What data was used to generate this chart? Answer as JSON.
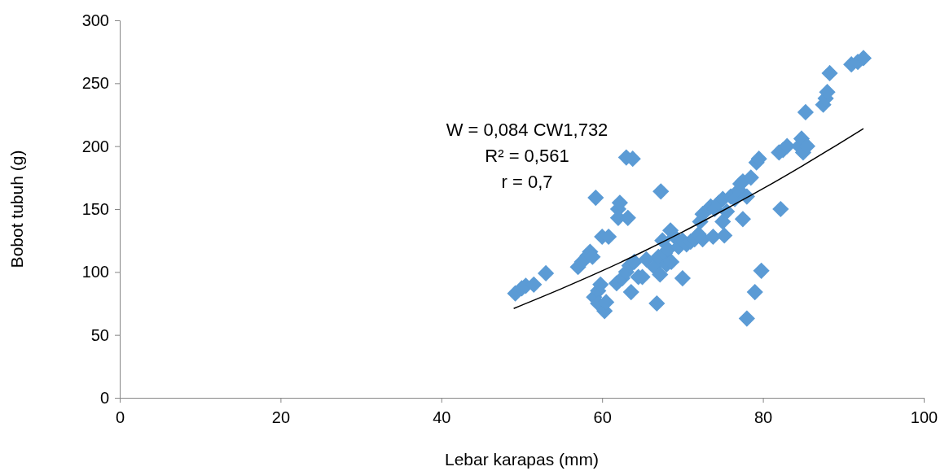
{
  "chart_data": {
    "type": "scatter",
    "xlabel": "Lebar karapas (mm)",
    "ylabel": "Bobot tubuh (g)",
    "xlim": [
      0,
      100
    ],
    "xticks": [
      0,
      20,
      40,
      60,
      80,
      100
    ],
    "ylim": [
      0,
      300
    ],
    "yticks": [
      0,
      50,
      100,
      150,
      200,
      250,
      300
    ],
    "grid": false,
    "marker": "diamond",
    "annotations": [
      "W = 0,084 CW1,732",
      "R² = 0,561",
      "r = 0,7"
    ],
    "series": [
      {
        "color": "#5b9bd5",
        "x": [
          49.2,
          50,
          50.5,
          51.5,
          53,
          57,
          57.5,
          58.2,
          58.5,
          58.8,
          59.2,
          59,
          59.5,
          59.8,
          59.5,
          60.3,
          60.5,
          60,
          60.8,
          61.8,
          62,
          62.2,
          62,
          62.5,
          63,
          63.2,
          63.4,
          63,
          63.8,
          63.6,
          64,
          64.5,
          65,
          65.5,
          66.5,
          66.8,
          67,
          67.2,
          67.3,
          67.5,
          67.8,
          68,
          68.2,
          68.5,
          68.6,
          69,
          69.5,
          70,
          70,
          70.5,
          71,
          71.5,
          72,
          72.2,
          72.5,
          72.5,
          73.5,
          73.8,
          74,
          74.5,
          75,
          75,
          75.2,
          75.5,
          76,
          76.5,
          77,
          77.2,
          77.5,
          77.5,
          78,
          78,
          78.5,
          79,
          79.2,
          79.5,
          79.8,
          82.2,
          82,
          82.5,
          83,
          84.5,
          84.8,
          85,
          85.5,
          85.3,
          87.5,
          87.8,
          88,
          88.3,
          91,
          91.8,
          92.5
        ],
        "values": [
          83,
          87,
          89,
          90,
          99,
          104,
          108,
          113,
          116,
          112,
          159,
          80,
          85,
          90,
          75,
          69,
          76,
          128,
          128,
          91,
          150,
          155,
          143,
          95,
          100,
          143,
          105,
          191,
          190,
          84,
          108,
          96,
          96,
          110,
          104,
          75,
          112,
          98,
          164,
          125,
          115,
          106,
          118,
          133,
          108,
          128,
          120,
          95,
          125,
          122,
          124,
          126,
          130,
          140,
          146,
          126,
          152,
          128,
          150,
          155,
          140,
          158,
          129,
          148,
          160,
          158,
          165,
          170,
          142,
          172,
          160,
          63,
          175,
          84,
          187,
          190,
          101,
          150,
          195,
          197,
          200,
          200,
          206,
          195,
          200,
          227,
          233,
          238,
          243,
          258,
          265,
          267,
          270
        ]
      },
      {
        "type": "line",
        "color": "#000000",
        "marker": "none",
        "x": [
          49,
          55,
          60,
          65,
          70,
          75,
          80,
          85,
          92.5
        ],
        "values": [
          71,
          86.9,
          100.9,
          115.9,
          131.8,
          148.7,
          166.2,
          184.7,
          214
        ]
      }
    ]
  }
}
